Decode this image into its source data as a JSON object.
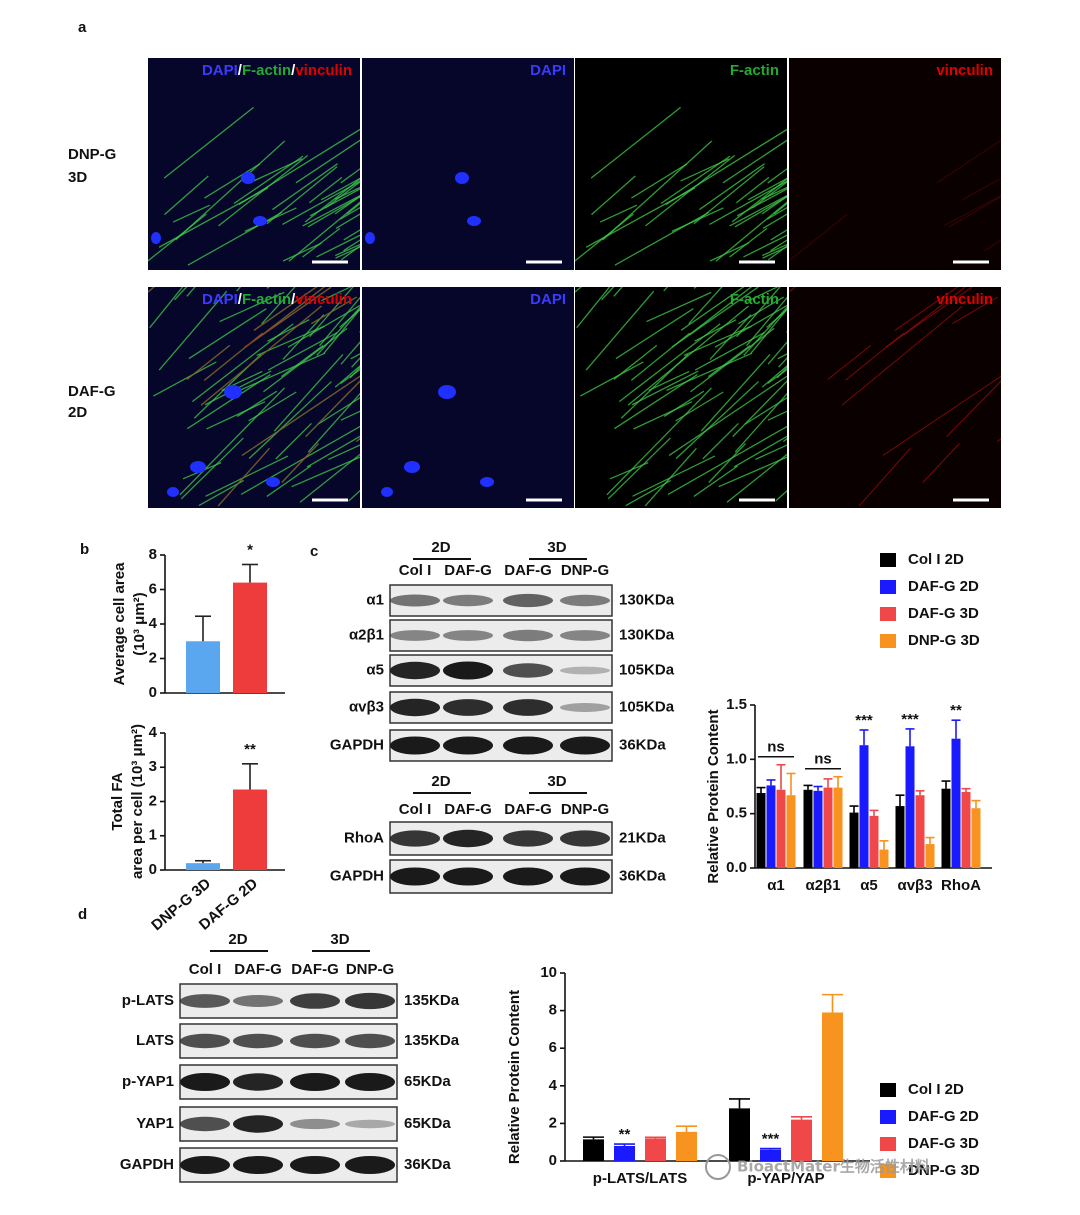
{
  "panel_labels": [
    "a",
    "b",
    "c",
    "d"
  ],
  "microscopy": {
    "channels": [
      {
        "name": "DAPI",
        "color": "#3b3bff"
      },
      {
        "name": "F-actin",
        "color": "#22aa33"
      },
      {
        "name": "vinculin",
        "color": "#e00000"
      }
    ],
    "separator": "/",
    "rows": [
      [
        "DNP-G",
        "3D"
      ],
      [
        "DAF-G",
        "2D"
      ]
    ]
  },
  "blots": [
    {
      "groups": [
        "2D",
        "3D"
      ],
      "lanes": [
        "Col I",
        "DAF-G",
        "DAF-G",
        "DNP-G"
      ],
      "rows": [
        [
          "α1",
          "130KDa"
        ],
        [
          "α2β1",
          "130KDa"
        ],
        [
          "α5",
          "105KDa"
        ],
        [
          "αvβ3",
          "105KDa"
        ],
        [
          "GAPDH",
          "36KDa"
        ]
      ]
    },
    {
      "groups": [
        "2D",
        "3D"
      ],
      "lanes": [
        "Col I",
        "DAF-G",
        "DAF-G",
        "DNP-G"
      ],
      "rows": [
        [
          "RhoA",
          "21KDa"
        ],
        [
          "GAPDH",
          "36KDa"
        ]
      ]
    },
    {
      "groups": [
        "2D",
        "3D"
      ],
      "lanes": [
        "Col I",
        "DAF-G",
        "DAF-G",
        "DNP-G"
      ],
      "rows": [
        [
          "p-LATS",
          "135KDa"
        ],
        [
          "LATS",
          "135KDa"
        ],
        [
          "p-YAP1",
          "65KDa"
        ],
        [
          "YAP1",
          "65KDa"
        ],
        [
          "GAPDH",
          "36KDa"
        ]
      ]
    }
  ],
  "chart_data": [
    {
      "type": "bar",
      "ylabel": [
        "Average cell area",
        "(10³ μm²)"
      ],
      "categories": [
        null,
        null
      ],
      "values": [
        3.0,
        6.4
      ],
      "errors": [
        1.45,
        1.05
      ],
      "colors": [
        "#5aa7f0",
        "#ee3b3b"
      ],
      "significance": [
        null,
        "*"
      ],
      "ylim": [
        0,
        8
      ],
      "yticks": [
        0,
        2,
        4,
        6,
        8
      ]
    },
    {
      "type": "bar",
      "ylabel": [
        "Total FA",
        "area per cell (10³ μm²)"
      ],
      "categories": [
        "DNP-G 3D",
        "DAF-G 2D"
      ],
      "values": [
        0.2,
        2.35
      ],
      "errors": [
        0.07,
        0.75
      ],
      "colors": [
        "#5aa7f0",
        "#ee3b3b"
      ],
      "significance": [
        null,
        "**"
      ],
      "ylim": [
        0,
        4
      ],
      "yticks": [
        0,
        1,
        2,
        3,
        4
      ]
    },
    {
      "type": "grouped-bar",
      "ylabel": "Relative Protein Content",
      "categories": [
        "α1",
        "α2β1",
        "α5",
        "αvβ3",
        "RhoA"
      ],
      "group_labels": [
        "ns",
        "ns",
        null,
        null,
        null
      ],
      "series": [
        {
          "name": "Col I 2D",
          "color": "#000000",
          "values": [
            0.69,
            0.72,
            0.51,
            0.57,
            0.73
          ],
          "errors": [
            0.05,
            0.04,
            0.06,
            0.1,
            0.07
          ],
          "significance": [
            null,
            null,
            null,
            null,
            null
          ]
        },
        {
          "name": "DAF-G 2D",
          "color": "#1a1aff",
          "values": [
            0.76,
            0.71,
            1.13,
            1.12,
            1.19
          ],
          "errors": [
            0.05,
            0.04,
            0.14,
            0.16,
            0.17
          ],
          "significance": [
            null,
            null,
            "***",
            "***",
            "**"
          ]
        },
        {
          "name": "DAF-G 3D",
          "color": "#f04848",
          "values": [
            0.72,
            0.74,
            0.48,
            0.67,
            0.7
          ],
          "errors": [
            0.23,
            0.08,
            0.05,
            0.04,
            0.03
          ],
          "significance": [
            null,
            null,
            null,
            null,
            null
          ]
        },
        {
          "name": "DNP-G 3D",
          "color": "#f7931e",
          "values": [
            0.67,
            0.74,
            0.17,
            0.22,
            0.55
          ],
          "errors": [
            0.2,
            0.1,
            0.08,
            0.06,
            0.07
          ],
          "significance": [
            null,
            null,
            null,
            null,
            null
          ]
        }
      ],
      "ylim": [
        0,
        1.5
      ],
      "yticks": [
        {
          "value": 0,
          "label": "0.0"
        },
        0.5,
        {
          "value": 1,
          "label": "1.0"
        },
        1.5
      ]
    },
    {
      "type": "grouped-bar",
      "ylabel": "Relative Protein Content",
      "categories": [
        "p-LATS/LATS",
        "p-YAP/YAP"
      ],
      "group_labels": [
        null,
        null
      ],
      "series": [
        {
          "name": "Col I 2D",
          "color": "#000000",
          "values": [
            1.15,
            2.8
          ],
          "errors": [
            0.12,
            0.5
          ],
          "significance": [
            null,
            null
          ]
        },
        {
          "name": "DAF-G 2D",
          "color": "#1a1aff",
          "values": [
            0.8,
            0.6
          ],
          "errors": [
            0.1,
            0.06
          ],
          "significance": [
            "**",
            "***"
          ]
        },
        {
          "name": "DAF-G 3D",
          "color": "#f04848",
          "values": [
            1.2,
            2.2
          ],
          "errors": [
            0.06,
            0.15
          ],
          "significance": [
            null,
            null
          ]
        },
        {
          "name": "DNP-G 3D",
          "color": "#f7931e",
          "values": [
            1.55,
            7.9
          ],
          "errors": [
            0.3,
            0.95
          ],
          "significance": [
            null,
            null
          ]
        }
      ],
      "ylim": [
        0,
        10
      ],
      "yticks": [
        0,
        2,
        4,
        6,
        8,
        10
      ]
    }
  ],
  "watermark": "BioactMater生物活性材料"
}
